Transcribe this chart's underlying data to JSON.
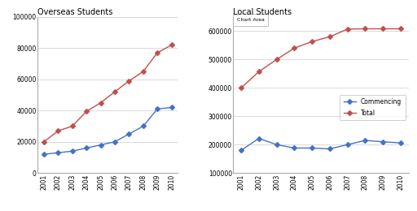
{
  "years": [
    2001,
    2002,
    2003,
    2004,
    2005,
    2006,
    2007,
    2008,
    2009,
    2010
  ],
  "overseas_total": [
    20000,
    27000,
    30000,
    39500,
    45000,
    52000,
    59000,
    65000,
    77000,
    82000
  ],
  "overseas_commencing": [
    12000,
    13000,
    14000,
    16000,
    18000,
    20000,
    25000,
    30000,
    41000,
    42000
  ],
  "local_total": [
    400000,
    457000,
    500000,
    540000,
    563000,
    580000,
    607000,
    608000,
    608000,
    608000
  ],
  "local_commencing": [
    180000,
    222000,
    200000,
    188000,
    188000,
    185000,
    200000,
    215000,
    210000,
    206000
  ],
  "color_total": "#c0504d",
  "color_commencing": "#4472c4",
  "title_overseas": "Overseas Students",
  "title_local": "Local Students",
  "legend_commencing": "Commencing",
  "legend_total": "Total",
  "chart_area_label": "Chart Area",
  "overseas_ylim": [
    0,
    100000
  ],
  "overseas_yticks": [
    0,
    20000,
    40000,
    60000,
    80000,
    100000
  ],
  "local_ylim": [
    100000,
    650000
  ],
  "local_yticks": [
    100000,
    200000,
    300000,
    400000,
    500000,
    600000
  ],
  "background_color": "#ffffff",
  "plot_bg_color": "#ffffff",
  "marker": "D",
  "markersize": 3,
  "linewidth": 1.0
}
